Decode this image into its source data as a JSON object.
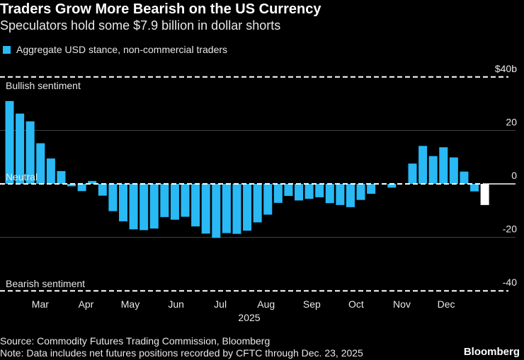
{
  "title": "Traders Grow More Bearish on the US Currency",
  "subtitle": "Speculators hold some $7.9 billion in dollar shorts",
  "source": "Source: Commodity Futures Trading Commission, Bloomberg",
  "note": "Note: Data includes net futures positions recorded by CFTC through Dec. 23, 2025",
  "brand": "Bloomberg",
  "chart_data": {
    "type": "bar",
    "series": [
      {
        "name": "Aggregate USD stance, non-commercial traders",
        "color": "#29b9f5",
        "last_color": "#ffffff",
        "values": [
          31.0,
          26.3,
          23.4,
          15.2,
          9.5,
          4.8,
          -0.9,
          -2.7,
          1.1,
          -4.4,
          -10.2,
          -14.0,
          -17.0,
          -17.3,
          -16.7,
          -12.4,
          -13.4,
          -12.3,
          -15.9,
          -18.6,
          -20.2,
          -18.4,
          -18.7,
          -17.5,
          -14.4,
          -11.5,
          -7.1,
          -4.5,
          -6.2,
          -5.6,
          -5.0,
          -7.2,
          -7.9,
          -8.7,
          -6.0,
          -3.7,
          0,
          -1.4,
          0,
          7.6,
          14.2,
          10.4,
          13.7,
          9.9,
          4.6,
          -2.8,
          -7.9
        ]
      }
    ],
    "x_start": "2025-02-04",
    "x_end": "2025-12-23",
    "x_interval": "weekly",
    "xticks": [
      {
        "label": "Mar",
        "date": "2025-03-01"
      },
      {
        "label": "Apr",
        "date": "2025-04-01"
      },
      {
        "label": "May",
        "date": "2025-05-01"
      },
      {
        "label": "Jun",
        "date": "2025-06-01"
      },
      {
        "label": "Jul",
        "date": "2025-07-01"
      },
      {
        "label": "Aug",
        "date": "2025-08-01"
      },
      {
        "label": "Sep",
        "date": "2025-09-01"
      },
      {
        "label": "Oct",
        "date": "2025-10-01"
      },
      {
        "label": "Nov",
        "date": "2025-11-01"
      },
      {
        "label": "Dec",
        "date": "2025-12-01"
      }
    ],
    "xlabel": "2025",
    "yticks": [
      {
        "value": 40,
        "label": "$40b"
      },
      {
        "value": 20,
        "label": "20"
      },
      {
        "value": 0,
        "label": "0"
      },
      {
        "value": -20,
        "label": "-20"
      },
      {
        "value": -40,
        "label": "-40"
      }
    ],
    "ylim": [
      -40,
      40
    ],
    "annotations": [
      {
        "value": 40,
        "label": "Bullish sentiment"
      },
      {
        "value": 0,
        "label": "Neutral"
      },
      {
        "value": -40,
        "label": "Bearish sentiment"
      }
    ],
    "grid": true,
    "legend": "top-left"
  }
}
